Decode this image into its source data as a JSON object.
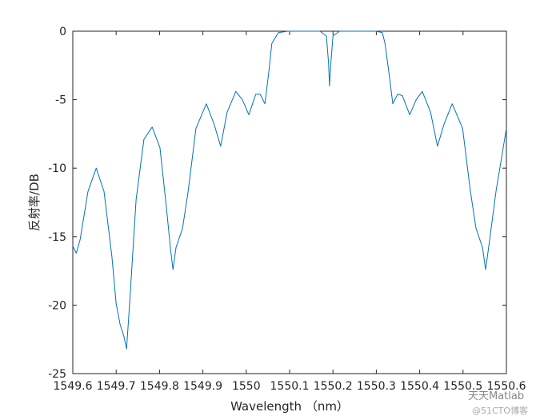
{
  "chart_data": {
    "type": "line",
    "xlabel": "Wavelength （nm）",
    "ylabel": "反射率/DB",
    "watermark": [
      "天天Matlab",
      "@51CTO博客"
    ],
    "x": [
      1549.6,
      1549.608,
      1549.617,
      1549.635,
      1549.654,
      1549.672,
      1549.69,
      1549.7,
      1549.709,
      1549.718,
      1549.724,
      1549.731,
      1549.746,
      1549.764,
      1549.783,
      1549.801,
      1549.816,
      1549.825,
      1549.831,
      1549.838,
      1549.853,
      1549.866,
      1549.884,
      1549.908,
      1549.926,
      1549.941,
      1549.956,
      1549.976,
      1549.991,
      1550.006,
      1550.022,
      1550.032,
      1550.043,
      1550.052,
      1550.059,
      1550.074,
      1550.096,
      1550.17,
      1550.185,
      1550.19,
      1550.192,
      1550.195,
      1550.2,
      1550.215,
      1550.299,
      1550.314,
      1550.32,
      1550.329,
      1550.338,
      1550.349,
      1550.36,
      1550.377,
      1550.392,
      1550.406,
      1550.425,
      1550.441,
      1550.456,
      1550.475,
      1550.499,
      1550.517,
      1550.53,
      1550.545,
      1550.552,
      1550.559,
      1550.576,
      1550.6
    ],
    "series": [
      {
        "color": "#0072bd",
        "values": [
          -15.7,
          -16.2,
          -15.2,
          -11.7,
          -10.0,
          -11.7,
          -16.4,
          -19.9,
          -21.4,
          -22.3,
          -23.2,
          -19.9,
          -12.3,
          -7.9,
          -7.0,
          -8.5,
          -12.9,
          -15.8,
          -17.4,
          -15.8,
          -14.4,
          -11.7,
          -7.1,
          -5.3,
          -6.8,
          -8.4,
          -5.9,
          -4.4,
          -5.0,
          -6.1,
          -4.6,
          -4.6,
          -5.3,
          -3.0,
          -0.9,
          -0.1,
          0,
          0,
          -0.35,
          -2.4,
          -4.0,
          -2.4,
          -0.35,
          0,
          0,
          -0.1,
          -0.9,
          -3.0,
          -5.3,
          -4.6,
          -4.7,
          -6.1,
          -5.0,
          -4.4,
          -5.9,
          -8.4,
          -6.8,
          -5.3,
          -7.1,
          -11.7,
          -14.4,
          -15.8,
          -17.4,
          -15.8,
          -11.7,
          -7.1
        ]
      }
    ],
    "xlim": [
      1549.6,
      1550.6
    ],
    "xticks": [
      1549.6,
      1549.7,
      1549.8,
      1549.9,
      1550,
      1550.1,
      1550.2,
      1550.3,
      1550.4,
      1550.5,
      1550.6
    ],
    "ylim": [
      -25,
      0
    ],
    "yticks": [
      -25,
      -20,
      -15,
      -10,
      -5,
      0
    ],
    "grid": false
  }
}
